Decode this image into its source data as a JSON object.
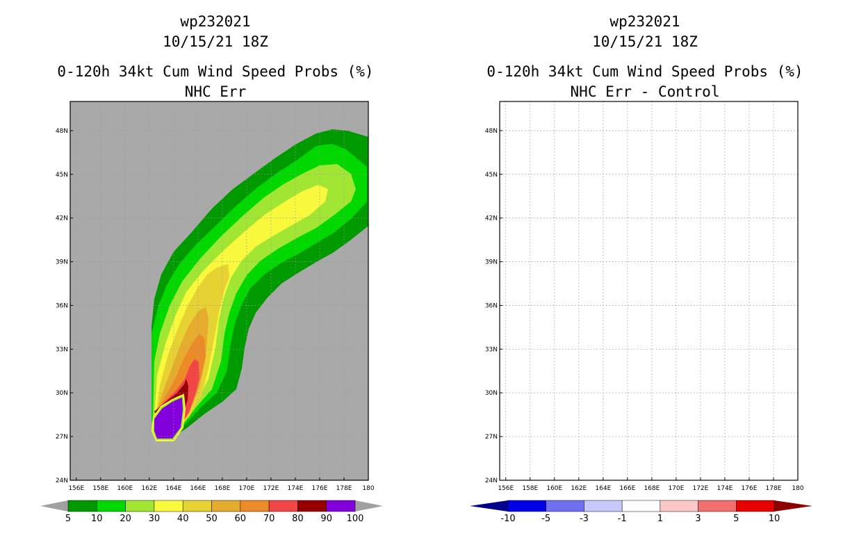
{
  "chart_data": [
    {
      "type": "heatmap",
      "storm_id": "wp232021",
      "datetime": "10/15/21 18Z",
      "title": "0-120h 34kt Cum Wind Speed Probs (%)",
      "subtitle": "NHC Err",
      "x_ticks": [
        "156E",
        "158E",
        "160E",
        "162E",
        "164E",
        "166E",
        "168E",
        "170E",
        "172E",
        "174E",
        "176E",
        "178E",
        "180"
      ],
      "y_ticks": [
        "48N",
        "45N",
        "42N",
        "39N",
        "36N",
        "33N",
        "30N",
        "27N",
        "24N"
      ],
      "lon_range": [
        155.5,
        180
      ],
      "lat_range": [
        24,
        50
      ],
      "background_color": "#a9a9a9",
      "contour_levels": [
        5,
        10,
        20,
        30,
        40,
        50,
        60,
        70,
        80,
        90,
        100
      ],
      "colorbar_labels": [
        "5",
        "10",
        "20",
        "30",
        "40",
        "50",
        "60",
        "70",
        "80",
        "90",
        "100"
      ],
      "colorbar_colors": [
        "#009a00",
        "#00d800",
        "#a0e632",
        "#f8f83c",
        "#e6d232",
        "#e6ac2e",
        "#ed8a28",
        "#f04646",
        "#960000",
        "#8200dc"
      ],
      "colorbar_arrow_color": "#a0a0a0"
    },
    {
      "type": "heatmap",
      "storm_id": "wp232021",
      "datetime": "10/15/21 18Z",
      "title": "0-120h 34kt Cum Wind Speed Probs (%)",
      "subtitle": "NHC Err - Control",
      "x_ticks": [
        "156E",
        "158E",
        "160E",
        "162E",
        "164E",
        "166E",
        "168E",
        "170E",
        "172E",
        "174E",
        "176E",
        "178E",
        "180"
      ],
      "y_ticks": [
        "48N",
        "45N",
        "42N",
        "39N",
        "36N",
        "33N",
        "30N",
        "27N",
        "24N"
      ],
      "lon_range": [
        155.5,
        180
      ],
      "lat_range": [
        24,
        50
      ],
      "background_color": "#ffffff",
      "colorbar_labels": [
        "-10",
        "-5",
        "-3",
        "-1",
        "1",
        "3",
        "5",
        "10"
      ],
      "colorbar_colors": [
        "#0000e6",
        "#6f6fef",
        "#c8c8fa",
        "#ffffff",
        "#fac8c8",
        "#f06e6e",
        "#e60000"
      ],
      "colorbar_arrow_left_color": "#00008c",
      "colorbar_arrow_right_color": "#8c0000"
    }
  ]
}
